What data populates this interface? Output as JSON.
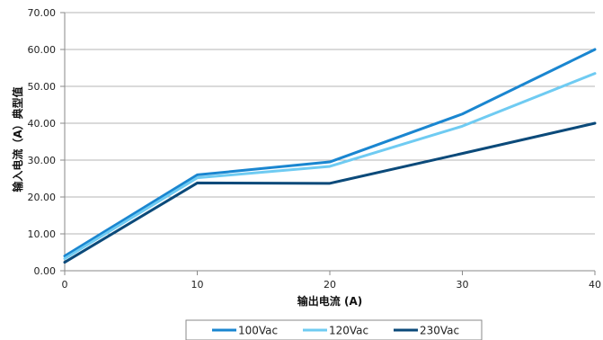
{
  "chart_data": {
    "type": "line",
    "xlabel": "输出电流 (A)",
    "ylabel": "输入电流（A）典型值",
    "xlim": [
      0,
      40
    ],
    "ylim": [
      0,
      70
    ],
    "x_ticks": [
      "0",
      "10",
      "20",
      "30",
      "40"
    ],
    "y_ticks": [
      "0.00",
      "10.00",
      "20.00",
      "30.00",
      "40.00",
      "50.00",
      "60.00",
      "70.00"
    ],
    "grid": "horizontal",
    "legend_position": "bottom",
    "x": [
      0,
      10,
      20,
      30,
      40
    ],
    "series": [
      {
        "name": "100Vac",
        "color": "#1a86d0",
        "values": [
          4.0,
          26.0,
          29.5,
          42.5,
          60.0
        ]
      },
      {
        "name": "120Vac",
        "color": "#6fcbf2",
        "values": [
          3.3,
          25.2,
          28.3,
          39.2,
          53.5
        ]
      },
      {
        "name": "230Vac",
        "color": "#0b4a7a",
        "values": [
          2.3,
          23.8,
          23.7,
          31.8,
          40.0
        ]
      }
    ]
  }
}
